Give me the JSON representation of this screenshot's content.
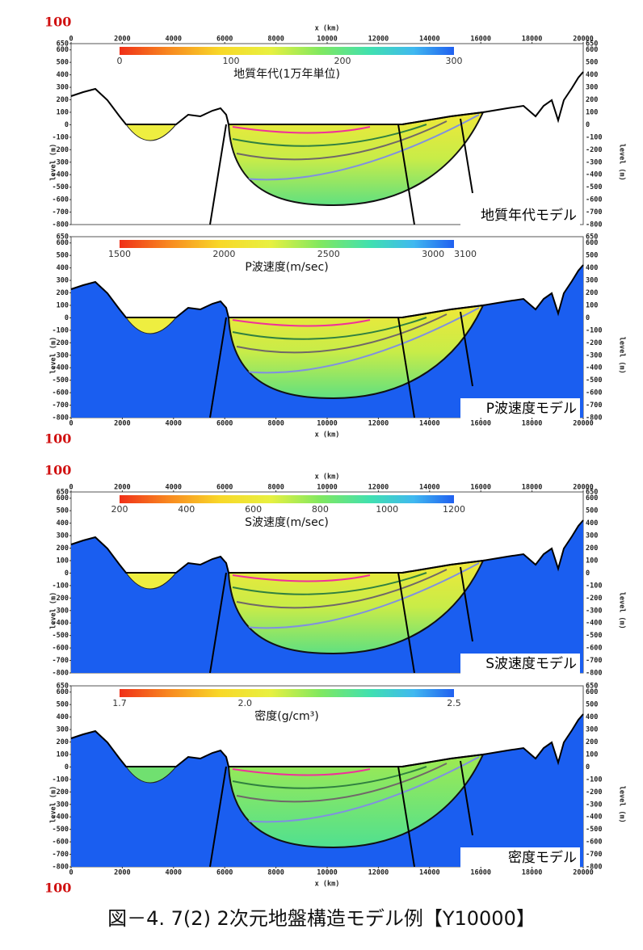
{
  "x_axis": {
    "label": "x (km)",
    "ticks": [
      0,
      2000,
      4000,
      6000,
      8000,
      10000,
      12000,
      14000,
      16000,
      18000,
      20000
    ]
  },
  "y_axis": {
    "label": "level (m)",
    "ticks": [
      650,
      600,
      500,
      400,
      300,
      200,
      100,
      0,
      -100,
      -200,
      -300,
      -400,
      -500,
      -600,
      -700,
      -800
    ]
  },
  "page_marks": [
    "100",
    "100",
    "100",
    "100"
  ],
  "panels": [
    {
      "colorbar_title": "地質年代(1万年単位)",
      "colorbar_ticks": [
        0,
        100,
        200,
        300
      ],
      "model_label": "地質年代モデル"
    },
    {
      "colorbar_title": "P波速度(m/sec)",
      "colorbar_ticks": [
        1500,
        2000,
        2500,
        3000,
        3100
      ],
      "model_label": "P波速度モデル"
    },
    {
      "colorbar_title": "S波速度(m/sec)",
      "colorbar_ticks": [
        200,
        400,
        600,
        800,
        1000,
        1200
      ],
      "model_label": "S波速度モデル"
    },
    {
      "colorbar_title": "密度(g/cm³)",
      "colorbar_ticks": [
        1.7,
        {
          "value": 2,
          "label": "2.0"
        },
        2.5
      ],
      "model_label": "密度モデル"
    }
  ],
  "caption": "図－4. 7(2)  2次元地盤構造モデル例【Y10000】"
}
